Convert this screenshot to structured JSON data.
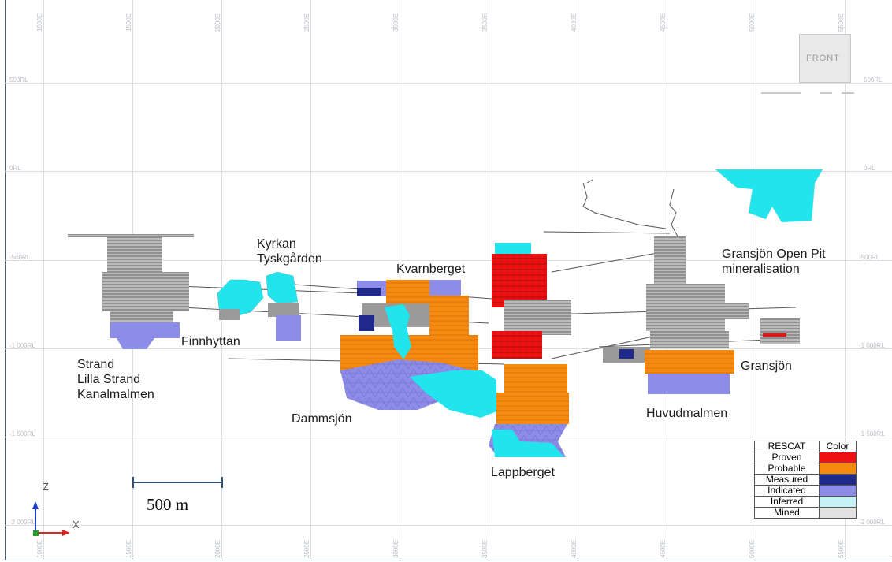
{
  "axes": {
    "easting_ticks": [
      "1000E",
      "1500E",
      "2000E",
      "2500E",
      "3000E",
      "3500E",
      "4000E",
      "4500E",
      "5000E",
      "5500E"
    ],
    "rl_ticks": [
      "500RL",
      "0RL",
      "-500RL",
      "-1 000RL",
      "-1 500RL",
      "-2 000RL"
    ],
    "axis_z": "Z",
    "axis_x": "X"
  },
  "view_cube": {
    "label": "FRONT"
  },
  "scale_bar": {
    "label": "500 m"
  },
  "deposits": {
    "strand": [
      "Strand",
      "Lilla Strand",
      "Kanalmalmen"
    ],
    "finnhyttan": "Finnhyttan",
    "kyrkan": [
      "Kyrkan",
      "Tyskgården"
    ],
    "kvarnberget": "Kvarnberget",
    "dammsjon": "Dammsjön",
    "lappberget": "Lappberget",
    "huvudmalmen": "Huvudmalmen",
    "gransjon": "Gransjön",
    "gransjon_open_pit": [
      "Gransjön Open Pit",
      "mineralisation"
    ]
  },
  "legend": {
    "header_category": "RESCAT",
    "header_color": "Color",
    "rows": [
      {
        "name": "Proven",
        "color": "#ee1111"
      },
      {
        "name": "Probable",
        "color": "#f6890f"
      },
      {
        "name": "Measured",
        "color": "#1f2a8a"
      },
      {
        "name": "Indicated",
        "color": "#8d8de8"
      },
      {
        "name": "Inferred",
        "color": "#c6f1f5"
      },
      {
        "name": "Mined",
        "color": "#e2e2e2"
      }
    ]
  },
  "colors": {
    "cyan": "#22e4ec",
    "mined_grey": "#9a9a9a"
  }
}
